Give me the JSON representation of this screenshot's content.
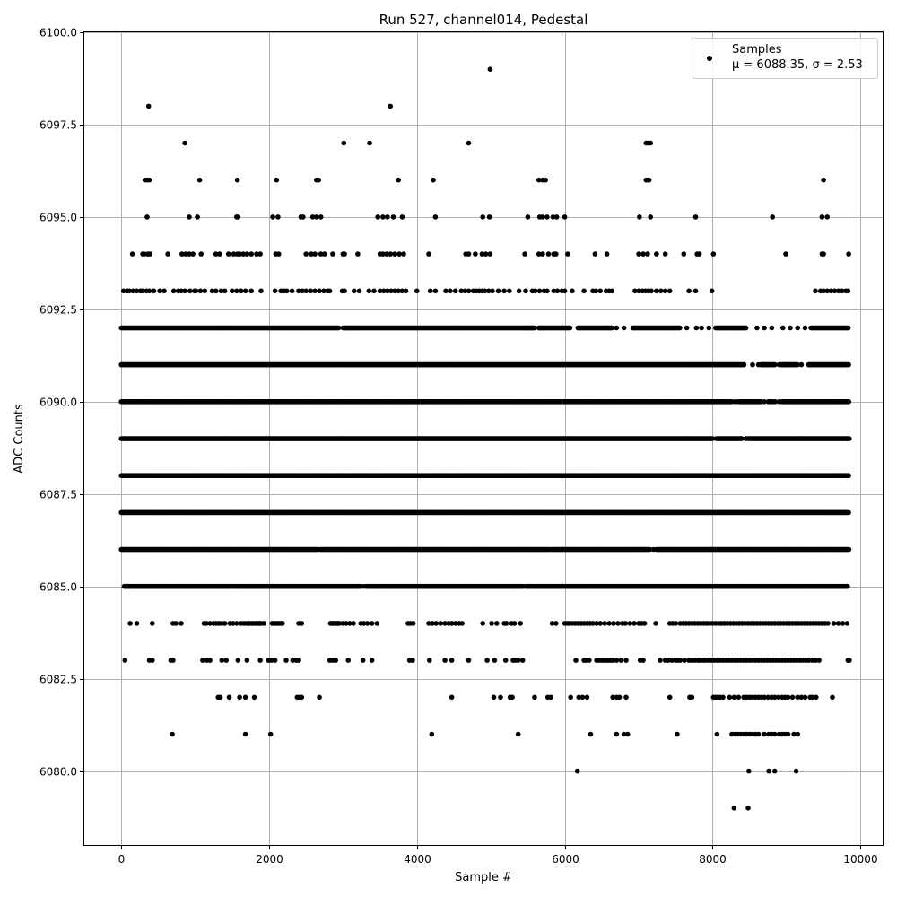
{
  "chart_data": {
    "type": "scatter",
    "title": "Run 527, channel014, Pedestal",
    "xlabel": "Sample #",
    "ylabel": "ADC Counts",
    "xlim": [
      -500,
      10300
    ],
    "ylim": [
      6078,
      6100
    ],
    "xticks": [
      0,
      2000,
      4000,
      6000,
      8000,
      10000
    ],
    "xtick_labels": [
      "0",
      "2000",
      "4000",
      "6000",
      "8000",
      "10000"
    ],
    "yticks": [
      6080.0,
      6082.5,
      6085.0,
      6087.5,
      6090.0,
      6092.5,
      6095.0,
      6097.5,
      6100.0
    ],
    "ytick_labels": [
      "6080.0",
      "6082.5",
      "6085.0",
      "6087.5",
      "6090.0",
      "6092.5",
      "6095.0",
      "6097.5",
      "6100.0"
    ],
    "grid": true,
    "legend_position": "top-right",
    "marker_color": "#000000",
    "series": [
      {
        "name": "Samples",
        "legend_stats": "μ = 6088.35, σ = 2.53",
        "points": [
          [
            370,
            6098
          ],
          [
            3640,
            6098
          ],
          [
            4990,
            6099
          ],
          [
            860,
            6097
          ],
          [
            3010,
            6097
          ],
          [
            3360,
            6097
          ],
          [
            4700,
            6097
          ],
          [
            7100,
            6097
          ],
          [
            7130,
            6097
          ],
          [
            7160,
            6097
          ],
          [
            8290,
            6079
          ],
          [
            8480,
            6079
          ],
          [
            690,
            6081
          ],
          [
            1680,
            6081
          ],
          [
            2020,
            6081
          ],
          [
            4200,
            6081
          ],
          [
            5370,
            6081
          ],
          [
            6350,
            6081
          ],
          [
            6700,
            6081
          ],
          [
            6800,
            6081
          ],
          [
            6850,
            6081
          ],
          [
            7520,
            6081
          ],
          [
            8060,
            6081
          ],
          [
            6170,
            6080
          ],
          [
            8490,
            6080
          ],
          [
            8760,
            6080
          ],
          [
            8840,
            6080
          ],
          [
            9130,
            6080
          ]
        ],
        "levels": [
          {
            "y": 6096,
            "x": [
              320,
              350,
              380,
              1060,
              1570,
              2100,
              2640,
              2670,
              3750,
              4220,
              5650,
              5700,
              5740,
              7100,
              7120,
              7140,
              9500
            ]
          },
          {
            "y": 6095,
            "x": [
              350,
              920,
              1030,
              1560,
              1580,
              2050,
              2120,
              2430,
              2460,
              2590,
              2640,
              2700,
              3470,
              3540,
              3600,
              3680,
              3800,
              4250,
              4890,
              4980,
              5500,
              5660,
              5700,
              5760,
              5840,
              5890,
              6000,
              7010,
              7160,
              7770,
              8810,
              9480,
              9550
            ]
          },
          {
            "y": 6094,
            "x": [
              150,
              290,
              310,
              360,
              390,
              630,
              820,
              870,
              920,
              970,
              1080,
              1280,
              1330,
              1450,
              1520,
              1570,
              1600,
              1650,
              1700,
              1760,
              1830,
              1880,
              2090,
              2130,
              2500,
              2570,
              2620,
              2700,
              2750,
              2860,
              3000,
              3020,
              3200,
              3500,
              3540,
              3590,
              3640,
              3700,
              3760,
              3820,
              4160,
              4660,
              4700,
              4790,
              4880,
              4930,
              4990,
              5460,
              5650,
              5700,
              5780,
              5850,
              5880,
              6040,
              6410,
              6570,
              7000,
              7060,
              7120,
              7240,
              7360,
              7610,
              7790,
              7820,
              8010,
              8990,
              9480,
              9500,
              9840
            ]
          },
          {
            "y": 6093,
            "x": [
              30,
              80,
              110,
              160,
              210,
              260,
              290,
              340,
              380,
              440,
              520,
              580,
              710,
              770,
              810,
              860,
              930,
              990,
              1010,
              1070,
              1130,
              1230,
              1280,
              1350,
              1400,
              1500,
              1560,
              1620,
              1680,
              1760,
              1890,
              2080,
              2160,
              2200,
              2240,
              2310,
              2400,
              2450,
              2500,
              2560,
              2620,
              2680,
              2740,
              2790,
              2820,
              2990,
              3020,
              3150,
              3220,
              3350,
              3420,
              3500,
              3550,
              3600,
              3650,
              3700,
              3750,
              3800,
              3850,
              4000,
              4180,
              4250,
              4390,
              4450,
              4520,
              4600,
              4650,
              4700,
              4760,
              4800,
              4840,
              4880,
              4920,
              4970,
              5020,
              5100,
              5180,
              5250,
              5380,
              5470,
              5560,
              5600,
              5660,
              5720,
              5760,
              5850,
              5900,
              5960,
              6000,
              6100,
              6260,
              6380,
              6420,
              6480,
              6560,
              6600,
              6640,
              6950,
              7000,
              7050,
              7090,
              7130,
              7170,
              7240,
              7300,
              7360,
              7420,
              7680,
              7770,
              7990,
              9390,
              9460,
              9500,
              9550,
              9600,
              9650,
              9700,
              9750,
              9800,
              9830
            ]
          },
          {
            "y": 6092,
            "dense": [
              [
                0,
                2950
              ],
              [
                3000,
                5600
              ],
              [
                5650,
                6070
              ],
              [
                6180,
                6640
              ],
              [
                6920,
                7560
              ],
              [
                8040,
                8450
              ],
              [
                9330,
                9840
              ]
            ],
            "sparse": [
              3050,
              3100,
              3150,
              5500,
              5550,
              5650,
              5700,
              6180,
              6600,
              6700,
              6800,
              7650,
              7780,
              7850,
              7950,
              8100,
              8200,
              8300,
              8450,
              8600,
              8700,
              8800,
              8950,
              9050,
              9150,
              9250
            ]
          },
          {
            "y": 6091,
            "dense": [
              [
                0,
                8430
              ],
              [
                8650,
                8850
              ],
              [
                8920,
                9150
              ],
              [
                9300,
                9850
              ]
            ],
            "sparse": [
              8540,
              8620,
              8700,
              8900,
              9000,
              9200,
              9300
            ]
          },
          {
            "y": 6090,
            "dense": [
              [
                0,
                8250
              ],
              [
                8360,
                8640
              ],
              [
                8750,
                8830
              ],
              [
                8930,
                9850
              ]
            ],
            "sparse": [
              8260,
              8300,
              8330,
              8660,
              8700,
              8850,
              8900
            ]
          },
          {
            "y": 6089,
            "dense": [
              [
                0,
                8000
              ],
              [
                8070,
                8400
              ],
              [
                8480,
                9850
              ]
            ],
            "sparse": [
              8000,
              8050,
              8450
            ]
          },
          {
            "y": 6088,
            "dense": [
              [
                0,
                9850
              ]
            ],
            "sparse": []
          },
          {
            "y": 6087,
            "dense": [
              [
                0,
                9850
              ]
            ],
            "sparse": []
          },
          {
            "y": 6086,
            "dense": [
              [
                0,
                2640
              ],
              [
                2700,
                5790
              ],
              [
                5820,
                7130
              ],
              [
                7240,
                9850
              ]
            ],
            "sparse": [
              2650,
              2680,
              5800,
              7150,
              7200
            ]
          },
          {
            "y": 6085,
            "dense": [
              [
                40,
                1480
              ],
              [
                1520,
                3230
              ],
              [
                3320,
                5420
              ],
              [
                5470,
                9830
              ]
            ],
            "sparse": [
              1500,
              3250,
              3290,
              5440
            ]
          },
          {
            "y": 6084,
            "x": [
              120,
              210,
              420,
              700,
              740,
              810,
              1120,
              1150,
              1200,
              1250,
              1280,
              1320,
              1360,
              1400,
              1470,
              1510,
              1560,
              1620,
              1660,
              1700,
              1720,
              1740,
              1770,
              1800,
              1830,
              1850,
              1870,
              1890,
              1930,
              2040,
              2060,
              2080,
              2110,
              2130,
              2160,
              2180,
              2400,
              2440,
              2830,
              2850,
              2870,
              2890,
              2910,
              2930,
              2950,
              3000,
              3040,
              3090,
              3140,
              3240,
              3280,
              3330,
              3390,
              3460,
              3880,
              3910,
              3950,
              4160,
              4210,
              4260,
              4320,
              4380,
              4430,
              4470,
              4520,
              4570,
              4610,
              4890,
              5010,
              5080,
              5180,
              5210,
              5280,
              5320,
              5400,
              5830,
              5880,
              6000,
              6030,
              6060,
              6100,
              6140,
              6180,
              6220,
              6260,
              6300,
              6340,
              6380,
              6430,
              6480,
              6540,
              6600,
              6660,
              6720,
              6780,
              6820,
              6880,
              6940,
              7000,
              7040,
              7080,
              7230,
              7420,
              7460,
              7500,
              7560,
              7600,
              7640,
              7680,
              7720,
              7760,
              7800,
              7840,
              7880,
              7920,
              7960,
              8000,
              8040,
              8080,
              8120,
              8160,
              8200,
              8240,
              8280,
              8320,
              8360,
              8400,
              8440,
              8480,
              8520,
              8560,
              8600,
              8640,
              8680,
              8720,
              8760,
              8800,
              8840,
              8880,
              8920,
              8960,
              9000,
              9040,
              9080,
              9120,
              9160,
              9200,
              9240,
              9280,
              9320,
              9360,
              9400,
              9440,
              9480,
              9520,
              9560,
              9640,
              9700,
              9760,
              9820
            ]
          },
          {
            "y": 6083,
            "x": [
              50,
              380,
              420,
              670,
              700,
              1100,
              1160,
              1200,
              1360,
              1420,
              1580,
              1700,
              1880,
              1990,
              2030,
              2080,
              2230,
              2320,
              2370,
              2400,
              2820,
              2860,
              2900,
              3070,
              3270,
              3390,
              3900,
              3940,
              4170,
              4380,
              4470,
              4700,
              4950,
              5050,
              5200,
              5300,
              5330,
              5370,
              5430,
              6150,
              6260,
              6290,
              6330,
              6430,
              6460,
              6500,
              6530,
              6560,
              6590,
              6620,
              6650,
              6700,
              6760,
              6830,
              7020,
              7060,
              7290,
              7360,
              7400,
              7450,
              7500,
              7530,
              7560,
              7620,
              7680,
              7720,
              7760,
              7800,
              7830,
              7870,
              7900,
              7940,
              7980,
              8020,
              8060,
              8100,
              8140,
              8180,
              8220,
              8260,
              8300,
              8340,
              8380,
              8420,
              8460,
              8500,
              8540,
              8580,
              8620,
              8660,
              8700,
              8740,
              8780,
              8820,
              8860,
              8900,
              8940,
              8980,
              9020,
              9060,
              9100,
              9140,
              9180,
              9220,
              9260,
              9300,
              9350,
              9390,
              9440,
              9830,
              9850
            ]
          },
          {
            "y": 6082,
            "x": [
              1310,
              1340,
              1460,
              1600,
              1680,
              1800,
              2380,
              2410,
              2440,
              2680,
              4470,
              5040,
              5130,
              5260,
              5290,
              5590,
              5770,
              5810,
              6080,
              6190,
              6240,
              6300,
              6650,
              6700,
              6740,
              6830,
              7420,
              7690,
              7720,
              8010,
              8040,
              8070,
              8100,
              8140,
              8230,
              8290,
              8350,
              8420,
              8460,
              8500,
              8540,
              8580,
              8620,
              8660,
              8700,
              8750,
              8800,
              8840,
              8890,
              8940,
              8980,
              9020,
              9080,
              9150,
              9200,
              9250,
              9320,
              9350,
              9400,
              9620
            ]
          },
          {
            "y": 6081,
            "x": [
              8260,
              8300,
              8340,
              8380,
              8420,
              8460,
              8500,
              8540,
              8580,
              8620,
              8700,
              8760,
              8800,
              8840,
              8900,
              8940,
              8980,
              9020,
              9100,
              9150
            ]
          }
        ]
      }
    ]
  }
}
